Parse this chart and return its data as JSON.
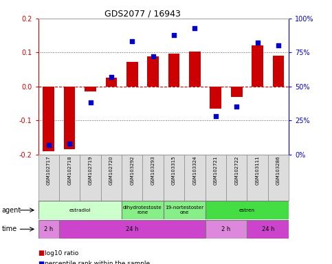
{
  "title": "GDS2077 / 16943",
  "samples": [
    "GSM102717",
    "GSM102718",
    "GSM102719",
    "GSM102720",
    "GSM103292",
    "GSM103293",
    "GSM103315",
    "GSM103324",
    "GSM102721",
    "GSM102722",
    "GSM103111",
    "GSM103286"
  ],
  "log10_ratio": [
    -0.19,
    -0.185,
    -0.015,
    0.025,
    0.072,
    0.088,
    0.097,
    0.102,
    -0.065,
    -0.03,
    0.12,
    0.09
  ],
  "percentile_rank": [
    7,
    8,
    38,
    57,
    83,
    72,
    88,
    93,
    28,
    35,
    82,
    80
  ],
  "bar_color": "#cc0000",
  "dot_color": "#0000cc",
  "ylim_left": [
    -0.2,
    0.2
  ],
  "ylim_right": [
    0,
    100
  ],
  "yticks_left": [
    -0.2,
    -0.1,
    0.0,
    0.1,
    0.2
  ],
  "yticks_right": [
    0,
    25,
    50,
    75,
    100
  ],
  "yticklabels_right": [
    "0%",
    "25%",
    "50%",
    "75%",
    "100%"
  ],
  "zero_line_color": "#cc0000",
  "dotted_line_color": "#555555",
  "agent_groups": [
    {
      "label": "estradiol",
      "start": 0,
      "end": 3,
      "color": "#ccffcc"
    },
    {
      "label": "dihydrotestoste\nrone",
      "start": 4,
      "end": 5,
      "color": "#88ee88"
    },
    {
      "label": "19-nortestoster\none",
      "start": 6,
      "end": 7,
      "color": "#88ee88"
    },
    {
      "label": "estren",
      "start": 8,
      "end": 11,
      "color": "#44dd44"
    }
  ],
  "time_groups": [
    {
      "label": "2 h",
      "start": 0,
      "end": 0,
      "color": "#dd88dd"
    },
    {
      "label": "24 h",
      "start": 1,
      "end": 7,
      "color": "#cc44cc"
    },
    {
      "label": "2 h",
      "start": 8,
      "end": 9,
      "color": "#dd88dd"
    },
    {
      "label": "24 h",
      "start": 10,
      "end": 11,
      "color": "#cc44cc"
    }
  ],
  "legend_red": "log10 ratio",
  "legend_blue": "percentile rank within the sample",
  "background_color": "#ffffff",
  "bar_width": 0.55,
  "dot_size": 18
}
